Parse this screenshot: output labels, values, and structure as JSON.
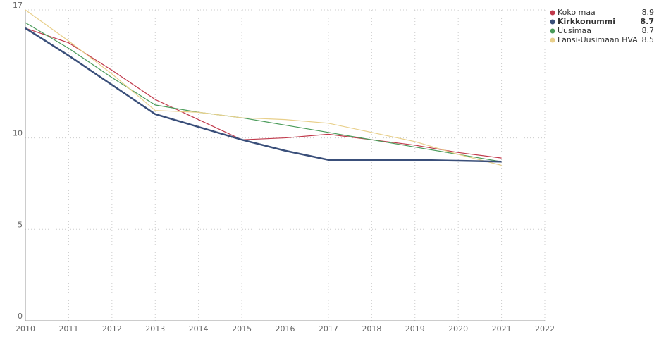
{
  "chart_data": {
    "type": "line",
    "x": [
      2010,
      2011,
      2012,
      2013,
      2014,
      2015,
      2016,
      2017,
      2018,
      2019,
      2020,
      2021
    ],
    "xlim": [
      2010,
      2022
    ],
    "xticks": [
      2010,
      2011,
      2012,
      2013,
      2014,
      2015,
      2016,
      2017,
      2018,
      2019,
      2020,
      2021,
      2022
    ],
    "ylim": [
      0,
      17
    ],
    "yticks": [
      0,
      5,
      10,
      17
    ],
    "grid": true,
    "legend": "top-right",
    "series": [
      {
        "name": "Koko maa",
        "color": "#c0394b",
        "legend_value": "8.9",
        "bold": false,
        "values": [
          16.0,
          15.2,
          13.7,
          12.1,
          11.0,
          9.9,
          10.0,
          10.2,
          9.9,
          9.6,
          9.2,
          8.9
        ]
      },
      {
        "name": "Kirkkonummi",
        "color": "#3a4f7a",
        "legend_value": "8.7",
        "bold": true,
        "values": [
          16.0,
          14.5,
          12.9,
          11.3,
          10.6,
          9.9,
          9.3,
          8.8,
          8.8,
          8.8,
          8.75,
          8.7
        ]
      },
      {
        "name": "Uusimaa",
        "color": "#4a9b5a",
        "legend_value": "8.7",
        "bold": false,
        "values": [
          16.3,
          14.9,
          13.3,
          11.8,
          11.4,
          11.1,
          10.7,
          10.3,
          9.9,
          9.5,
          9.1,
          8.7
        ]
      },
      {
        "name": "Länsi-Uusimaan HVA",
        "color": "#e8cf8a",
        "legend_value": "8.5",
        "bold": false,
        "values": [
          17.0,
          15.3,
          13.5,
          11.5,
          11.4,
          11.1,
          11.0,
          10.8,
          10.3,
          9.8,
          9.1,
          8.5
        ]
      }
    ]
  }
}
